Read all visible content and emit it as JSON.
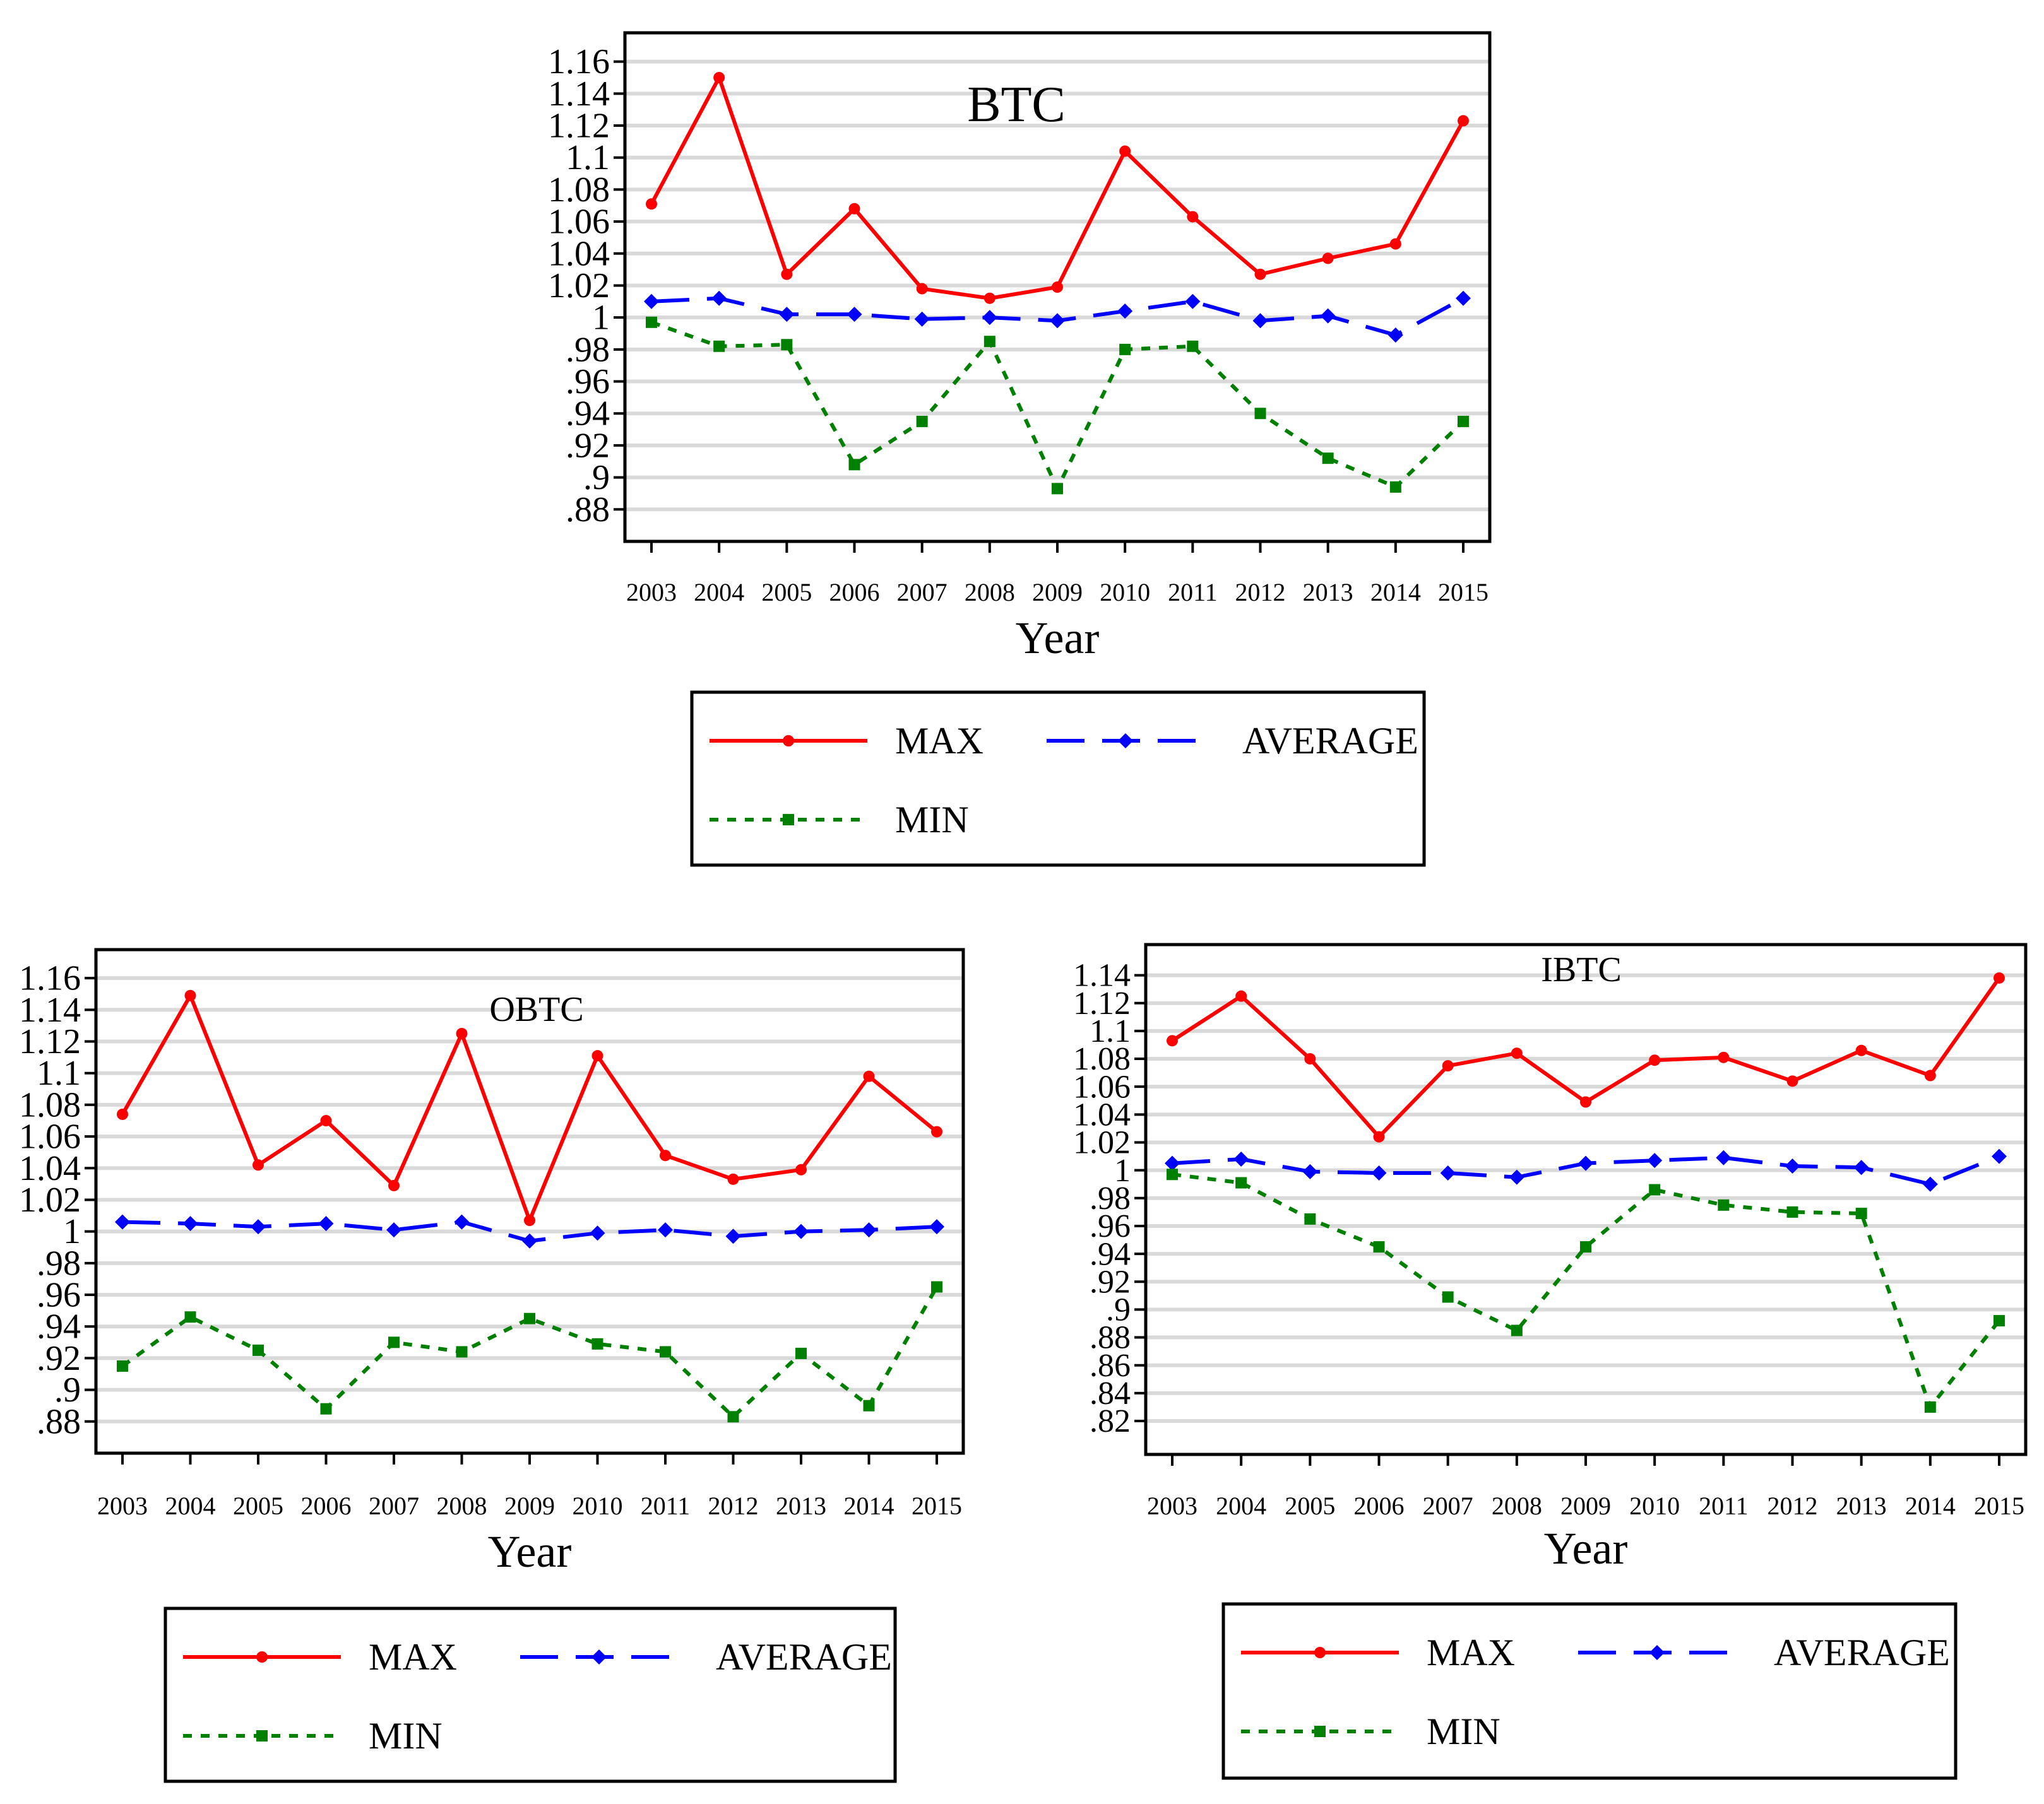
{
  "colors": {
    "max": "#ff0000",
    "average": "#0000ff",
    "min": "#008000",
    "grid": "#d9d9d9",
    "frame": "#000000"
  },
  "legend": {
    "max_label": "MAX",
    "average_label": "AVERAGE",
    "min_label": "MIN"
  },
  "chart_data": [
    {
      "type": "line",
      "title": "BTC",
      "xlabel": "Year",
      "ylabel": "",
      "grid": true,
      "legend_position": "below",
      "categories": [
        "2003",
        "2004",
        "2005",
        "2006",
        "2007",
        "2008",
        "2009",
        "2010",
        "2011",
        "2012",
        "2013",
        "2014",
        "2015"
      ],
      "yticks": [
        0.88,
        0.9,
        0.92,
        0.94,
        0.96,
        0.98,
        1,
        1.02,
        1.04,
        1.06,
        1.08,
        1.1,
        1.12,
        1.14,
        1.16
      ],
      "ytick_labels": [
        ".88",
        ".9",
        ".92",
        ".94",
        ".96",
        ".98",
        "1",
        "1.02",
        "1.04",
        "1.06",
        "1.08",
        "1.1",
        "1.12",
        "1.14",
        "1.16"
      ],
      "ylim": [
        0.86,
        1.178
      ],
      "series": [
        {
          "name": "MAX",
          "values": [
            1.071,
            1.15,
            1.027,
            1.068,
            1.018,
            1.012,
            1.019,
            1.104,
            1.063,
            1.027,
            1.037,
            1.046,
            1.123
          ]
        },
        {
          "name": "AVERAGE",
          "values": [
            1.01,
            1.012,
            1.002,
            1.002,
            0.999,
            1.0,
            0.998,
            1.004,
            1.01,
            0.998,
            1.001,
            0.989,
            1.012
          ]
        },
        {
          "name": "MIN",
          "values": [
            0.997,
            0.982,
            0.983,
            0.908,
            0.935,
            0.985,
            0.893,
            0.98,
            0.982,
            0.94,
            0.912,
            0.894,
            0.935
          ]
        }
      ]
    },
    {
      "type": "line",
      "title": "OBTC",
      "xlabel": "Year",
      "ylabel": "",
      "grid": true,
      "legend_position": "below",
      "categories": [
        "2003",
        "2004",
        "2005",
        "2006",
        "2007",
        "2008",
        "2009",
        "2010",
        "2011",
        "2012",
        "2013",
        "2014",
        "2015"
      ],
      "yticks": [
        0.88,
        0.9,
        0.92,
        0.94,
        0.96,
        0.98,
        1,
        1.02,
        1.04,
        1.06,
        1.08,
        1.1,
        1.12,
        1.14,
        1.16
      ],
      "ytick_labels": [
        ".88",
        ".9",
        ".92",
        ".94",
        ".96",
        ".98",
        "1",
        "1.02",
        "1.04",
        "1.06",
        "1.08",
        "1.1",
        "1.12",
        "1.14",
        "1.16"
      ],
      "ylim": [
        0.86,
        1.178
      ],
      "series": [
        {
          "name": "MAX",
          "values": [
            1.074,
            1.149,
            1.042,
            1.07,
            1.029,
            1.125,
            1.007,
            1.111,
            1.048,
            1.033,
            1.039,
            1.098,
            1.063
          ]
        },
        {
          "name": "AVERAGE",
          "values": [
            1.006,
            1.005,
            1.003,
            1.005,
            1.001,
            1.006,
            0.994,
            0.999,
            1.001,
            0.997,
            1.0,
            1.001,
            1.003
          ]
        },
        {
          "name": "MIN",
          "values": [
            0.915,
            0.946,
            0.925,
            0.888,
            0.93,
            0.924,
            0.945,
            0.929,
            0.924,
            0.883,
            0.923,
            0.89,
            0.965
          ]
        }
      ]
    },
    {
      "type": "line",
      "title": "IBTC",
      "xlabel": "Year",
      "ylabel": "",
      "grid": true,
      "legend_position": "below",
      "categories": [
        "2003",
        "2004",
        "2005",
        "2006",
        "2007",
        "2008",
        "2009",
        "2010",
        "2011",
        "2012",
        "2013",
        "2014",
        "2015"
      ],
      "yticks": [
        0.82,
        0.84,
        0.86,
        0.88,
        0.9,
        0.92,
        0.94,
        0.96,
        0.98,
        1,
        1.02,
        1.04,
        1.06,
        1.08,
        1.1,
        1.12,
        1.14
      ],
      "ytick_labels": [
        ".82",
        ".84",
        ".86",
        ".88",
        ".9",
        ".92",
        ".94",
        ".96",
        ".98",
        "1",
        "1.02",
        "1.04",
        "1.06",
        "1.08",
        "1.1",
        "1.12",
        "1.14"
      ],
      "ylim": [
        0.796,
        1.162
      ],
      "series": [
        {
          "name": "MAX",
          "values": [
            1.093,
            1.125,
            1.08,
            1.024,
            1.075,
            1.084,
            1.049,
            1.079,
            1.081,
            1.064,
            1.086,
            1.068,
            1.138
          ]
        },
        {
          "name": "AVERAGE",
          "values": [
            1.005,
            1.008,
            0.999,
            0.998,
            0.998,
            0.995,
            1.005,
            1.007,
            1.009,
            1.003,
            1.002,
            0.99,
            1.01
          ]
        },
        {
          "name": "MIN",
          "values": [
            0.997,
            0.991,
            0.965,
            0.945,
            0.909,
            0.885,
            0.945,
            0.986,
            0.975,
            0.97,
            0.969,
            0.83,
            0.892
          ]
        }
      ]
    }
  ]
}
